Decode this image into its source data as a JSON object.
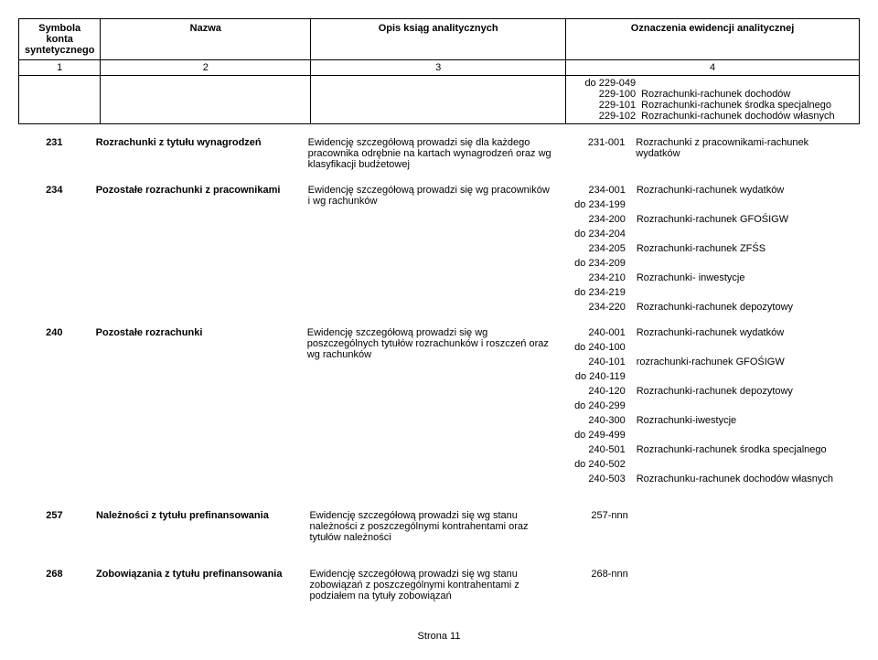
{
  "header": {
    "col1": "Symbola konta syntetycznego",
    "col2": "Nazwa",
    "col3": "Opis ksiąg analitycznych",
    "col4": "Oznaczenia ewidencji analitycznej",
    "n1": "1",
    "n2": "2",
    "n3": "3",
    "n4": "4"
  },
  "continuation": [
    {
      "code": "do 229-049",
      "desc": ""
    },
    {
      "code": "229-100",
      "desc": "Rozrachunki-rachunek dochodów"
    },
    {
      "code": "229-101",
      "desc": "Rozrachunki-rachunek środka specjalnego"
    },
    {
      "code": "229-102",
      "desc": "Rozrachunki-rachunek dochodów własnych"
    }
  ],
  "row231": {
    "num": "231",
    "name": "Rozrachunki z tytułu wynagrodzeń",
    "desc": "Ewidencję szczegółową prowadzi się dla każdego pracownika odrębnie na kartach wynagrodzeń oraz wg klasyfikacji budżetowej",
    "codes": [
      {
        "code": "231-001",
        "desc": "Rozrachunki z pracownikami-rachunek wydatków"
      }
    ]
  },
  "row234": {
    "num": "234",
    "name": "Pozostałe rozrachunki z pracownikami",
    "desc": "Ewidencję szczegółową prowadzi się wg pracowników i wg rachunków",
    "codes": [
      {
        "code": "234-001",
        "desc": "Rozrachunki-rachunek wydatków"
      },
      {
        "code": "do 234-199",
        "desc": ""
      },
      {
        "code": "234-200",
        "desc": "Rozrachunki-rachunek GFOŚIGW"
      },
      {
        "code": "do 234-204",
        "desc": ""
      },
      {
        "code": "234-205",
        "desc": "Rozrachunki-rachunek ZFŚS"
      },
      {
        "code": "do 234-209",
        "desc": ""
      },
      {
        "code": "234-210",
        "desc": "Rozrachunki- inwestycje"
      },
      {
        "code": "do 234-219",
        "desc": ""
      },
      {
        "code": "234-220",
        "desc": "Rozrachunki-rachunek depozytowy"
      }
    ]
  },
  "row240": {
    "num": "240",
    "name": "Pozostałe rozrachunki",
    "desc": "Ewidencję szczegółową prowadzi się wg poszczególnych tytułów rozrachunków i roszczeń oraz wg rachunków",
    "codes": [
      {
        "code": "240-001",
        "desc": "Rozrachunki-rachunek wydatków"
      },
      {
        "code": "do 240-100",
        "desc": ""
      },
      {
        "code": "240-101",
        "desc": "rozrachunki-rachunek GFOŚIGW"
      },
      {
        "code": "do 240-119",
        "desc": ""
      },
      {
        "code": "240-120",
        "desc": "Rozrachunki-rachunek depozytowy"
      },
      {
        "code": "do 240-299",
        "desc": ""
      },
      {
        "code": "240-300",
        "desc": "Rozrachunki-iwestycje"
      },
      {
        "code": "do 249-499",
        "desc": ""
      },
      {
        "code": "240-501",
        "desc": "Rozrachunki-rachunek środka specjalnego"
      },
      {
        "code": "do 240-502",
        "desc": ""
      },
      {
        "code": "240-503",
        "desc": "Rozrachunku-rachunek dochodów własnych"
      }
    ]
  },
  "row257": {
    "num": "257",
    "name": "Należności z tytułu prefinansowania",
    "desc": "Ewidencję szczegółową prowadzi się wg stanu należności z poszczególnymi kontrahentami oraz tytułów należności",
    "codes": [
      {
        "code": "257-nnn",
        "desc": ""
      }
    ]
  },
  "row268": {
    "num": "268",
    "name": "Zobowiązania z tytułu prefinansowania",
    "desc": "Ewidencję szczegółową prowadzi się wg stanu zobowiązań z poszczególnymi kontrahentami z podziałem na tytuły zobowiązań",
    "codes": [
      {
        "code": "268-nnn",
        "desc": ""
      }
    ]
  },
  "footer": "Strona 11"
}
